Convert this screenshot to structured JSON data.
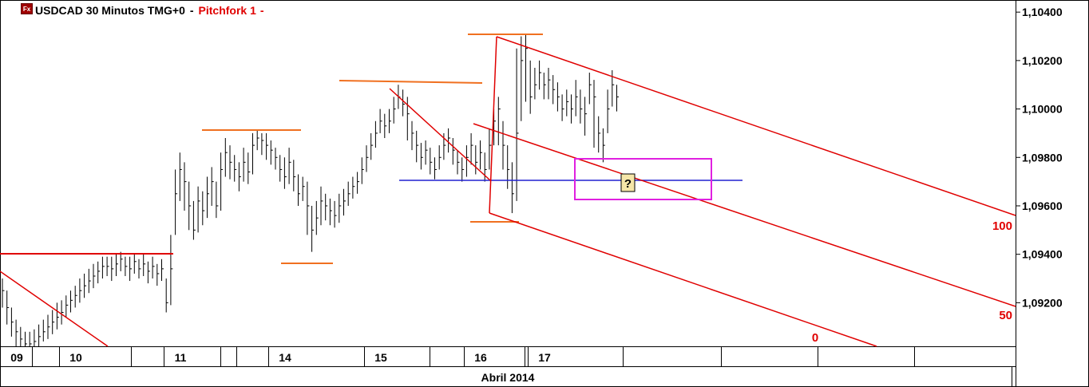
{
  "header": {
    "icon_label": "Fx",
    "symbol_title": "USDCAD 30 Minutos TMG+0",
    "separator": "-",
    "tool_name": "Pitchfork 1",
    "tool_separator": "-"
  },
  "colors": {
    "candles": "#000000",
    "pitchfork": "#e00000",
    "pivots": "#f07020",
    "support": "#2020d0",
    "box": "#e020e0",
    "marker_bg": "#f5e6a8",
    "grid": "#000000"
  },
  "chart_data": {
    "type": "line",
    "title": "USDCAD 30 Minutos TMG+0",
    "xlabel": "Abril 2014",
    "ylabel": "",
    "ylim": [
      1.0902,
      1.1045
    ],
    "y_ticks": [
      "1,10400",
      "1,10200",
      "1,10000",
      "1,09800",
      "1,09600",
      "1,09400",
      "1,09200"
    ],
    "y_tick_values": [
      1.104,
      1.102,
      1.1,
      1.098,
      1.096,
      1.094,
      1.092
    ],
    "x_ticks": [
      "09",
      "10",
      "11",
      "14",
      "15",
      "16",
      "17"
    ],
    "x_tick_index": [
      0,
      14,
      37,
      60,
      81,
      103,
      117
    ],
    "n_bars": 136,
    "month_label": "Abril 2014",
    "series": [
      {
        "close": [
          1.0925,
          1.0918,
          1.0912,
          1.0908,
          1.0905,
          1.0903,
          1.0903,
          1.0904,
          1.0906,
          1.0908,
          1.091,
          1.0912,
          1.0914,
          1.0916,
          1.0919,
          1.0921,
          1.0923,
          1.0925,
          1.0927,
          1.0929,
          1.0931,
          1.0933,
          1.0935,
          1.0935,
          1.0934,
          1.0936,
          1.0938,
          1.0935,
          1.0934,
          1.0937,
          1.0934,
          1.0936,
          1.0933,
          1.0935,
          1.0932,
          1.0934,
          1.092,
          1.0934,
          1.0965,
          1.0975,
          1.097,
          1.096,
          1.095,
          1.0962,
          1.0958,
          1.0965,
          1.097,
          1.096,
          1.0975,
          1.0982,
          1.0978,
          1.0975,
          1.0972,
          1.0978,
          1.0974,
          1.0985,
          1.0988,
          1.0987,
          1.0985,
          1.0983,
          1.098,
          1.0975,
          1.0972,
          1.0978,
          1.0972,
          1.0965,
          1.0968,
          1.096,
          1.095,
          1.0955,
          1.0962,
          1.096,
          1.0958,
          1.0956,
          1.096,
          1.0962,
          1.0965,
          1.0968,
          1.097,
          1.0975,
          1.098,
          1.0985,
          1.099,
          1.0995,
          1.0993,
          1.0995,
          1.1,
          1.1005,
          1.1002,
          1.0998,
          1.099,
          1.0985,
          1.098,
          1.0983,
          1.0978,
          1.0975,
          1.098,
          1.0985,
          1.0988,
          1.0983,
          1.0978,
          1.0975,
          1.098,
          1.0985,
          1.0978,
          1.0982,
          1.0975,
          1.0985,
          1.0995,
          1.1,
          1.0985,
          1.0975,
          1.0965,
          1.099,
          1.102,
          1.1025,
          1.1005,
          1.101,
          1.1015,
          1.101,
          1.1012,
          1.1008,
          1.1005,
          1.1,
          1.1003,
          1.1,
          1.1005,
          1.1,
          1.0998,
          1.101,
          1.1005,
          1.099,
          1.0985,
          1.1,
          1.101,
          1.1005
        ],
        "high": [
          1.093,
          1.0925,
          1.0918,
          1.0913,
          1.091,
          1.0908,
          1.0908,
          1.0909,
          1.0911,
          1.0913,
          1.0915,
          1.0917,
          1.092,
          1.0921,
          1.0923,
          1.0925,
          1.0927,
          1.093,
          1.0932,
          1.0934,
          1.0936,
          1.0937,
          1.0939,
          1.0939,
          1.0939,
          1.094,
          1.0941,
          1.0939,
          1.0939,
          1.094,
          1.0938,
          1.094,
          1.0937,
          1.0939,
          1.0936,
          1.0938,
          1.093,
          1.0948,
          1.0975,
          1.0982,
          1.0978,
          1.097,
          1.0962,
          1.0968,
          1.0966,
          1.0972,
          1.0976,
          1.097,
          1.0982,
          1.0988,
          1.0985,
          1.0981,
          1.0978,
          1.0984,
          1.0982,
          1.099,
          1.0991,
          1.099,
          1.099,
          1.0987,
          1.0984,
          1.0981,
          1.098,
          1.0984,
          1.0979,
          1.0973,
          1.0972,
          1.097,
          1.096,
          1.0962,
          1.0968,
          1.0965,
          1.0963,
          1.0962,
          1.0965,
          1.0967,
          1.097,
          1.0972,
          1.0974,
          1.098,
          1.0985,
          1.099,
          1.0995,
          1.1,
          1.0998,
          1.1,
          1.1005,
          1.101,
          1.1008,
          1.1005,
          1.0995,
          1.0991,
          1.0986,
          1.0987,
          1.0984,
          1.098,
          1.0985,
          1.099,
          1.0992,
          1.0988,
          1.0983,
          1.098,
          1.0985,
          1.099,
          1.0985,
          1.0987,
          1.0982,
          1.0992,
          1.1,
          1.1005,
          1.0995,
          1.0985,
          1.0978,
          1.1025,
          1.103,
          1.1031,
          1.102,
          1.1017,
          1.102,
          1.1015,
          1.1017,
          1.1014,
          1.1011,
          1.1006,
          1.1008,
          1.1006,
          1.1012,
          1.1008,
          1.1005,
          1.1015,
          1.1012,
          1.0997,
          1.0992,
          1.1008,
          1.1016,
          1.101
        ],
        "low": [
          1.0918,
          1.0911,
          1.0906,
          1.0902,
          1.09,
          1.0899,
          1.09,
          1.0901,
          1.0902,
          1.0904,
          1.0905,
          1.0907,
          1.0909,
          1.0911,
          1.0914,
          1.0916,
          1.0918,
          1.092,
          1.0922,
          1.0924,
          1.0926,
          1.0928,
          1.093,
          1.0931,
          1.0929,
          1.0931,
          1.0933,
          1.0931,
          1.0929,
          1.0932,
          1.093,
          1.0931,
          1.0928,
          1.093,
          1.0927,
          1.0929,
          1.0916,
          1.0919,
          1.0948,
          1.0962,
          1.0958,
          1.095,
          1.0946,
          1.0949,
          1.0952,
          1.0955,
          1.096,
          1.0955,
          1.0958,
          1.0972,
          1.0971,
          1.097,
          1.0966,
          1.097,
          1.0969,
          1.0973,
          1.0983,
          1.0981,
          1.0979,
          1.0977,
          1.0975,
          1.097,
          1.0967,
          1.0969,
          1.0966,
          1.096,
          1.0962,
          1.0948,
          1.0941,
          1.0948,
          1.0952,
          1.0954,
          1.0952,
          1.0951,
          1.0953,
          1.0956,
          1.096,
          1.0963,
          1.0965,
          1.0969,
          1.0974,
          1.0979,
          1.0984,
          1.099,
          1.0988,
          1.099,
          1.0994,
          1.1,
          1.0997,
          1.0987,
          1.0983,
          1.0978,
          1.0975,
          1.0977,
          1.0973,
          1.0971,
          1.0975,
          1.0979,
          1.0982,
          1.0977,
          1.0973,
          1.097,
          1.0972,
          1.0977,
          1.0973,
          1.0975,
          1.097,
          1.0975,
          1.0985,
          1.0985,
          1.0975,
          1.0967,
          1.0957,
          1.0962,
          1.0995,
          1.1003,
          1.0998,
          1.1004,
          1.1008,
          1.1004,
          1.1004,
          1.1002,
          1.0999,
          1.0995,
          1.0997,
          1.0994,
          1.0997,
          1.0994,
          1.0989,
          1.1002,
          1.0984,
          1.0982,
          1.0978,
          1.099,
          1.1001,
          1.0999
        ]
      }
    ],
    "annotations": {
      "pitchfork_labels": [
        "100",
        "50",
        "0"
      ],
      "marker_label": "?"
    },
    "grid": false,
    "legend": "none"
  }
}
